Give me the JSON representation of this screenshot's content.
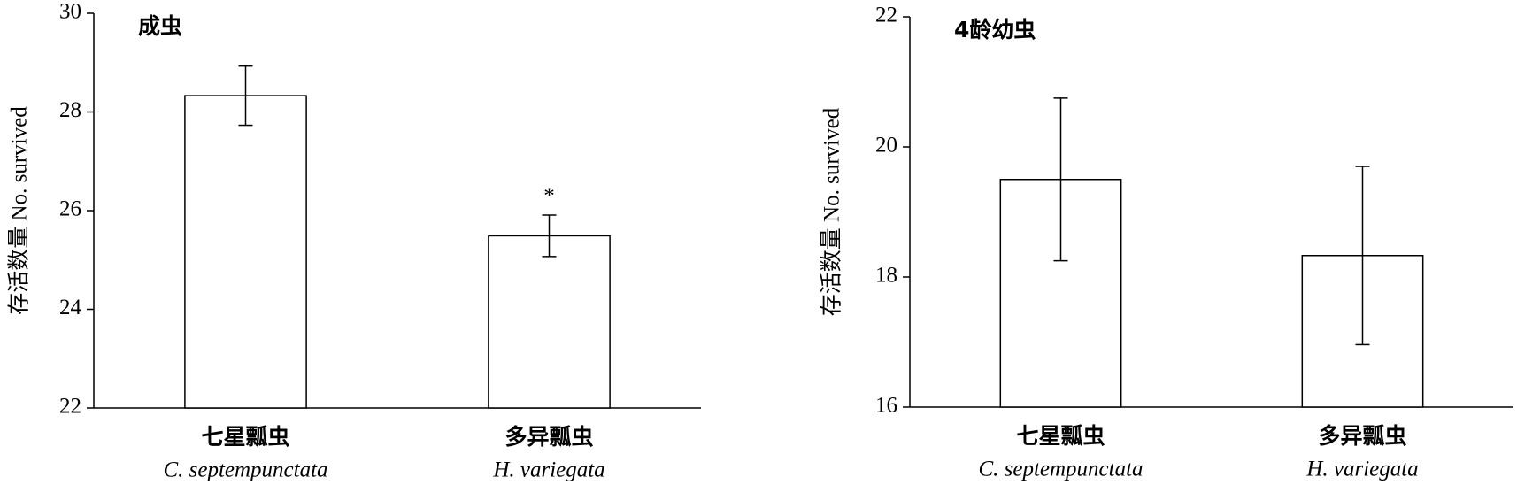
{
  "chart_data": [
    {
      "type": "bar",
      "title": "成虫",
      "y_label": "存活数量 No. survived",
      "categories": [
        "七星瓢虫",
        "多异瓢虫"
      ],
      "category_latin": [
        "C. septempunctata",
        "H. variegata"
      ],
      "values": [
        28.33,
        25.49
      ],
      "errors": [
        0.6,
        0.42
      ],
      "color": "#ffffff",
      "annotations": [
        {
          "text": "*",
          "x": "多异瓢虫"
        }
      ],
      "ylim": [
        22,
        30
      ],
      "yticks": [
        22,
        24,
        26,
        28,
        30
      ]
    },
    {
      "type": "bar",
      "title": "4龄幼虫",
      "y_label": "存活数量 No. survived",
      "categories": [
        "七星瓢虫",
        "多异瓢虫"
      ],
      "category_latin": [
        "C. septempunctata",
        "H. variegata"
      ],
      "values": [
        19.5,
        18.33
      ],
      "errors": [
        1.25,
        1.37
      ],
      "color": "#ffffff",
      "ylim": [
        16,
        22
      ],
      "yticks": [
        16,
        18,
        20,
        22
      ]
    }
  ]
}
